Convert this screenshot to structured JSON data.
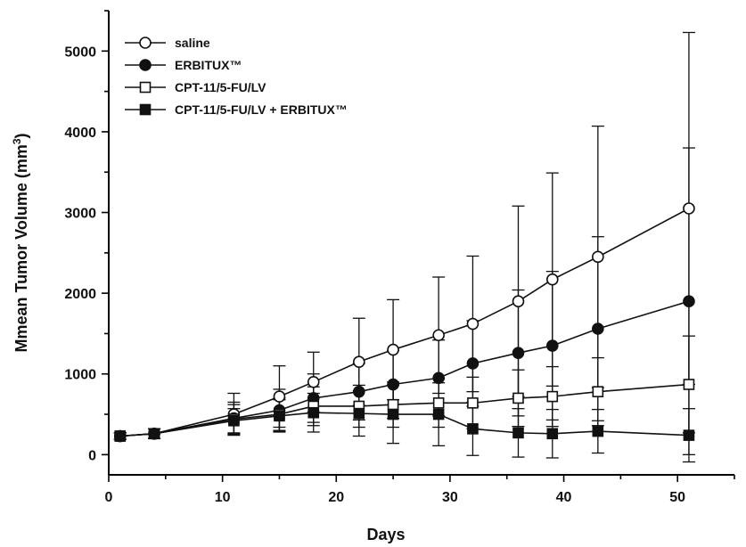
{
  "chart_data": {
    "type": "line",
    "title": "",
    "xlabel": "Days",
    "ylabel": "Mmean Tumor Volume (mm",
    "ylabel_sup": "3",
    "ylabel_close": ")",
    "xlim": [
      0,
      55
    ],
    "ylim": [
      -250,
      5500
    ],
    "xticks": [
      0,
      10,
      20,
      30,
      40,
      50
    ],
    "yticks": [
      0,
      1000,
      2000,
      3000,
      4000,
      5000
    ],
    "grid": false,
    "legend_position": "top-left",
    "series": [
      {
        "name": "saline",
        "marker": "circle",
        "filled": false,
        "x": [
          1,
          4,
          11,
          15,
          18,
          22,
          25,
          29,
          32,
          36,
          39,
          43,
          51
        ],
        "y": [
          230,
          260,
          500,
          720,
          900,
          1150,
          1300,
          1480,
          1620,
          1900,
          2170,
          2450,
          3050
        ],
        "err": [
          40,
          60,
          260,
          380,
          370,
          540,
          620,
          720,
          840,
          1180,
          1320,
          1620,
          2180
        ]
      },
      {
        "name": "ERBITUX™",
        "marker": "circle",
        "filled": true,
        "x": [
          1,
          4,
          11,
          15,
          18,
          22,
          25,
          29,
          32,
          36,
          39,
          43,
          51
        ],
        "y": [
          230,
          260,
          450,
          550,
          700,
          780,
          870,
          950,
          1130,
          1260,
          1350,
          1560,
          1900
        ],
        "err": [
          40,
          60,
          200,
          260,
          300,
          350,
          420,
          470,
          530,
          780,
          920,
          1140,
          1900
        ]
      },
      {
        "name": "CPT-11/5-FU/LV",
        "marker": "square",
        "filled": false,
        "x": [
          1,
          4,
          11,
          15,
          18,
          22,
          25,
          29,
          32,
          36,
          39,
          43,
          51
        ],
        "y": [
          230,
          260,
          440,
          500,
          600,
          600,
          620,
          640,
          640,
          700,
          720,
          780,
          870
        ],
        "err": [
          40,
          60,
          180,
          200,
          240,
          260,
          280,
          300,
          320,
          350,
          370,
          420,
          600
        ]
      },
      {
        "name": "CPT-11/5-FU/LV + ERBITUX™",
        "marker": "square",
        "filled": true,
        "x": [
          1,
          4,
          11,
          15,
          18,
          22,
          25,
          29,
          32,
          36,
          39,
          43,
          51
        ],
        "y": [
          230,
          260,
          420,
          480,
          520,
          510,
          500,
          500,
          320,
          270,
          260,
          290,
          240
        ],
        "err": [
          40,
          60,
          150,
          200,
          240,
          280,
          360,
          390,
          330,
          300,
          300,
          270,
          330
        ]
      }
    ]
  }
}
